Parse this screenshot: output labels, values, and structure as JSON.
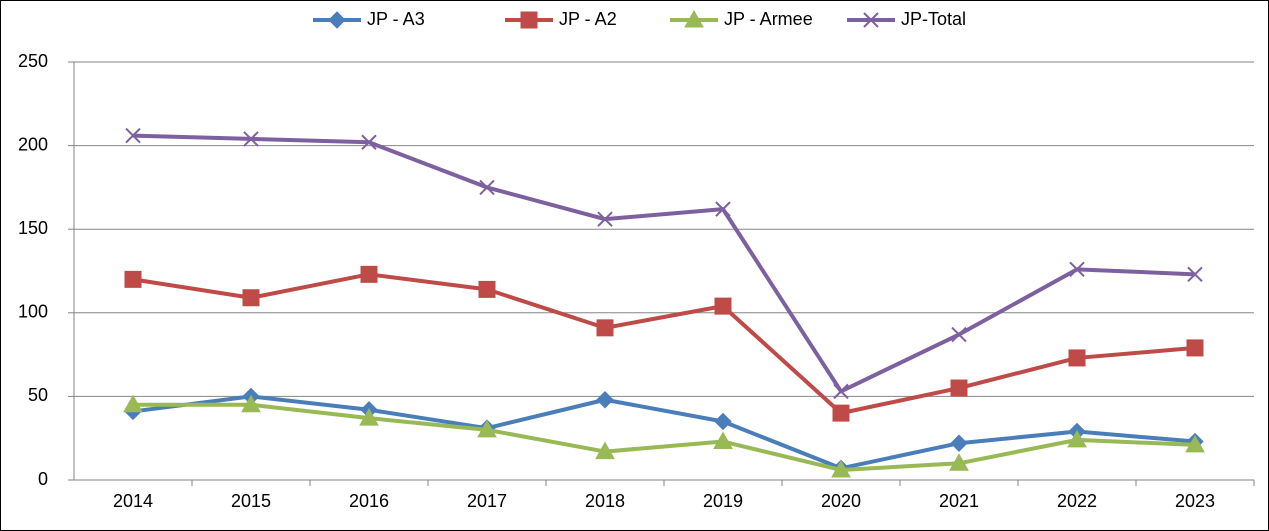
{
  "chart_data": {
    "type": "line",
    "categories": [
      "2014",
      "2015",
      "2016",
      "2017",
      "2018",
      "2019",
      "2020",
      "2021",
      "2022",
      "2023"
    ],
    "series": [
      {
        "name": "JP - A3",
        "color": "#4a7ebb",
        "marker": "diamond",
        "values": [
          41,
          50,
          42,
          31,
          48,
          35,
          7,
          22,
          29,
          23
        ]
      },
      {
        "name": "JP - A2",
        "color": "#be4b48",
        "marker": "square",
        "values": [
          120,
          109,
          123,
          114,
          91,
          104,
          40,
          55,
          73,
          79
        ]
      },
      {
        "name": "JP - Armee",
        "color": "#98b954",
        "marker": "triangle",
        "values": [
          45,
          45,
          37,
          30,
          17,
          23,
          6,
          10,
          24,
          21
        ]
      },
      {
        "name": "JP-Total",
        "color": "#7d60a0",
        "marker": "x",
        "values": [
          206,
          204,
          202,
          175,
          156,
          162,
          53,
          87,
          126,
          123
        ]
      }
    ],
    "ylim": [
      0,
      250
    ],
    "yticks": [
      0,
      50,
      100,
      150,
      200,
      250
    ],
    "grid": true,
    "legend": "top"
  }
}
